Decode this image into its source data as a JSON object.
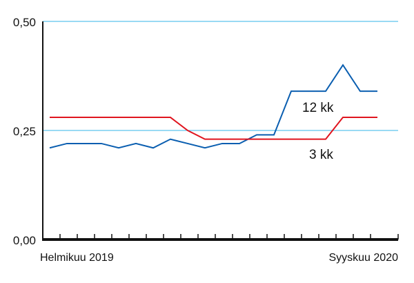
{
  "chart_data": {
    "type": "line",
    "title": "",
    "xlabel": "",
    "ylabel": "",
    "x_tick_labels": [
      "Helmikuu 2019",
      "Syyskuu 2020"
    ],
    "y_ticks": [
      0,
      0.25,
      0.5
    ],
    "y_tick_labels": [
      "0,00",
      "0,25",
      "0,50"
    ],
    "ylim": [
      0,
      0.5
    ],
    "grid": "horizontal",
    "x": [
      "2019-02",
      "2019-03",
      "2019-04",
      "2019-05",
      "2019-06",
      "2019-07",
      "2019-08",
      "2019-09",
      "2019-10",
      "2019-11",
      "2019-12",
      "2020-01",
      "2020-02",
      "2020-03",
      "2020-04",
      "2020-05",
      "2020-06",
      "2020-07",
      "2020-08",
      "2020-09"
    ],
    "series": [
      {
        "name": "12 kk",
        "color": "#0a5eb0",
        "values": [
          0.21,
          0.22,
          0.22,
          0.22,
          0.21,
          0.22,
          0.21,
          0.23,
          0.22,
          0.21,
          0.22,
          0.22,
          0.24,
          0.24,
          0.34,
          0.34,
          0.34,
          0.4,
          0.34,
          0.34
        ]
      },
      {
        "name": "3 kk",
        "color": "#e0141e",
        "values": [
          0.28,
          0.28,
          0.28,
          0.28,
          0.28,
          0.28,
          0.28,
          0.28,
          0.25,
          0.23,
          0.23,
          0.23,
          0.23,
          0.23,
          0.23,
          0.23,
          0.23,
          0.28,
          0.28,
          0.28
        ]
      }
    ],
    "colors": {
      "grid": "#33b5ea",
      "axis": "#111111"
    }
  }
}
